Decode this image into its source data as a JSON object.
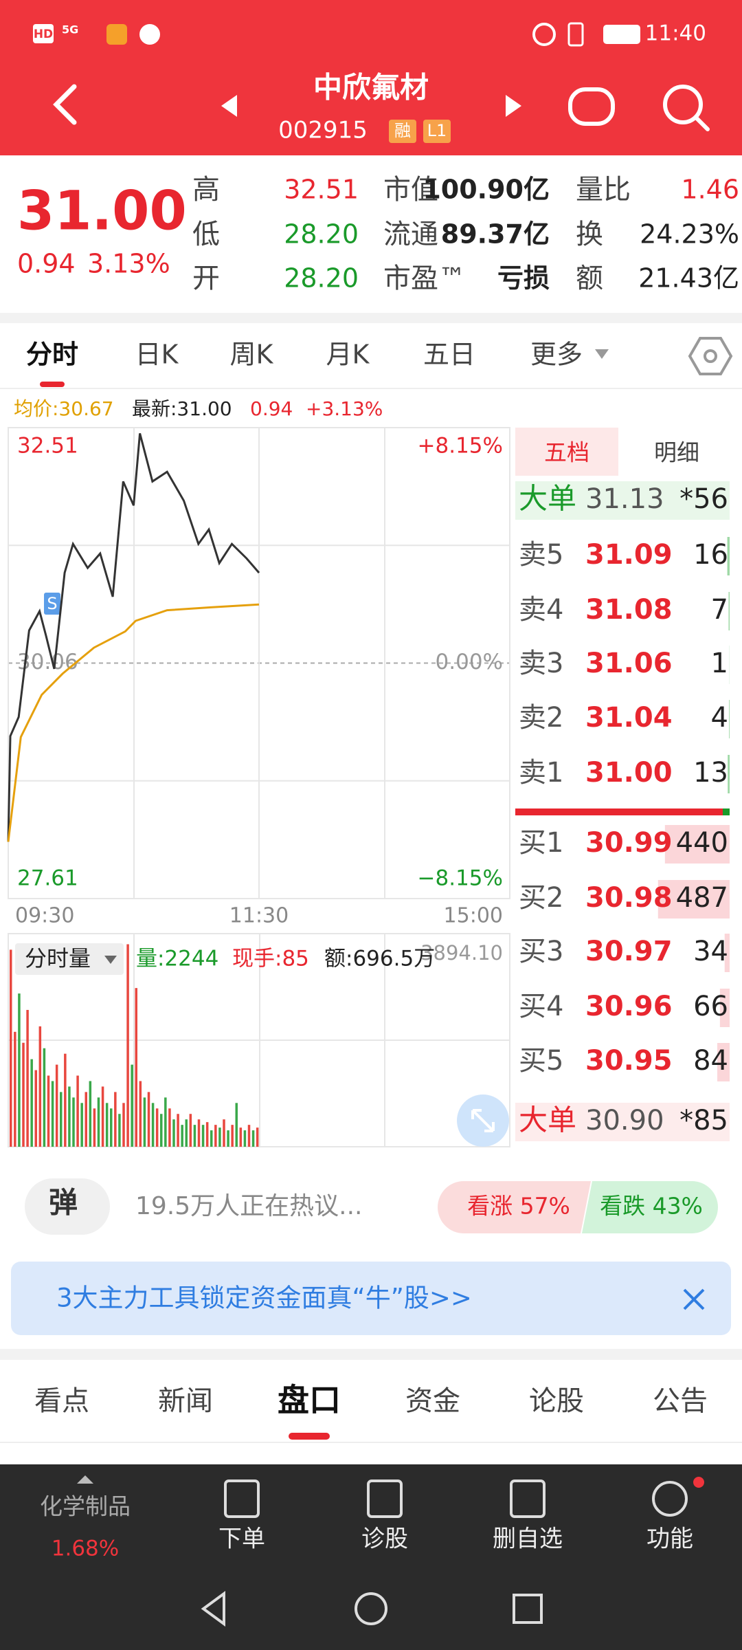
{
  "status_bar": {
    "indicators": [
      "HD",
      "5G"
    ],
    "time": "11:40"
  },
  "header": {
    "name": "中欣氟材",
    "code": "002915",
    "badges": [
      "融",
      "L1"
    ]
  },
  "quote": {
    "price": "31.00",
    "change": "0.94",
    "change_pct": "3.13%",
    "stats": [
      {
        "label": "高",
        "value": "32.51"
      },
      {
        "label": "低",
        "value": "28.20"
      },
      {
        "label": "开",
        "value": "28.20"
      },
      {
        "label": "市值",
        "value": "100.90亿"
      },
      {
        "label": "流通",
        "value": "89.37亿"
      },
      {
        "label": "市盈™",
        "value": "亏损"
      },
      {
        "label": "量比",
        "value": "1.46"
      },
      {
        "label": "换",
        "value": "24.23%"
      },
      {
        "label": "额",
        "value": "21.43亿"
      }
    ]
  },
  "chart_tabs": {
    "items": [
      "分时",
      "日K",
      "周K",
      "月K",
      "五日",
      "更多"
    ],
    "active": 0
  },
  "chart_data": [
    {
      "type": "line",
      "legend": [
        "均价:30.67",
        "最新:31.00",
        "0.94",
        "+3.13%"
      ],
      "xlim": [
        0,
        240
      ],
      "xticks": [
        {
          "value": 0,
          "label": "09:30"
        },
        {
          "value": 120,
          "label": "11:30"
        },
        {
          "value": 240,
          "label": "15:00"
        }
      ],
      "ylim": [
        27.61,
        32.51
      ],
      "yticks": [
        32.51,
        30.06,
        27.61
      ],
      "y2lim": [
        -8.15,
        8.15
      ],
      "y2ticks": [
        {
          "value": 8.15,
          "label": "+8.15%"
        },
        {
          "value": 0,
          "label": "0.00%"
        },
        {
          "value": -8.15,
          "label": "−8.15%"
        }
      ],
      "grid": true,
      "series": [
        {
          "color": "#333333",
          "x": [
            0,
            1,
            5,
            10,
            15,
            18,
            22,
            27,
            31,
            38,
            44,
            50,
            55,
            60,
            63,
            69,
            76,
            84,
            91,
            96,
            101,
            107,
            114,
            120
          ],
          "values": [
            28.2,
            29.3,
            29.5,
            30.4,
            30.6,
            30.35,
            30.0,
            31.0,
            31.3,
            31.05,
            31.2,
            30.75,
            31.95,
            31.7,
            32.45,
            31.95,
            32.05,
            31.75,
            31.3,
            31.45,
            31.1,
            31.3,
            31.15,
            31.0
          ]
        },
        {
          "color": "#e5a00d",
          "x": [
            0,
            6,
            16,
            26,
            41,
            56,
            61,
            76,
            97,
            120
          ],
          "values": [
            28.2,
            29.29,
            29.73,
            29.95,
            30.22,
            30.39,
            30.5,
            30.61,
            30.64,
            30.67
          ]
        }
      ]
    },
    {
      "type": "bar",
      "selector": "分时量",
      "volume_label": "量:2244",
      "hand_label": "现手:85",
      "amount_label": "额:696.5万",
      "xlim": [
        0,
        240
      ],
      "ylim": [
        0,
        3894.1
      ],
      "yticks": [
        {
          "value": 3894.1,
          "label": "3894.10"
        }
      ],
      "colors": {
        "up": "#e8473f",
        "down": "#3aa84a"
      },
      "x": [
        0,
        2,
        4,
        6,
        8,
        10,
        12,
        14,
        16,
        18,
        20,
        22,
        24,
        26,
        28,
        30,
        32,
        34,
        36,
        38,
        40,
        42,
        44,
        46,
        48,
        50,
        52,
        54,
        56,
        58,
        60,
        62,
        64,
        66,
        68,
        70,
        72,
        74,
        76,
        78,
        80,
        82,
        84,
        86,
        88,
        90,
        92,
        94,
        96,
        98,
        100,
        102,
        104,
        106,
        108,
        110,
        112,
        114,
        116,
        118
      ],
      "values": [
        3600,
        2100,
        2800,
        1900,
        2500,
        1600,
        1400,
        2200,
        1800,
        1300,
        1200,
        1500,
        1000,
        1700,
        1100,
        900,
        1300,
        800,
        1000,
        1200,
        700,
        900,
        1100,
        800,
        700,
        1000,
        600,
        800,
        3700,
        1500,
        2900,
        1200,
        900,
        1000,
        800,
        700,
        600,
        900,
        700,
        500,
        600,
        400,
        500,
        600,
        400,
        500,
        400,
        450,
        300,
        400,
        350,
        500,
        300,
        400,
        800,
        350,
        300,
        400,
        300,
        350
      ],
      "rising": [
        true,
        true,
        false,
        true,
        true,
        false,
        true,
        true,
        false,
        true,
        false,
        true,
        false,
        true,
        false,
        false,
        true,
        false,
        true,
        false,
        true,
        false,
        true,
        false,
        false,
        true,
        false,
        true,
        true,
        false,
        true,
        true,
        false,
        true,
        false,
        true,
        false,
        false,
        true,
        false,
        true,
        false,
        false,
        true,
        false,
        true,
        false,
        true,
        false,
        true,
        false,
        true,
        false,
        true,
        false,
        true,
        false,
        true,
        false,
        true
      ]
    }
  ],
  "order_book": {
    "tabs": [
      "五档",
      "明细"
    ],
    "big_sell": {
      "label": "大单",
      "price": "31.13",
      "volume": "*56"
    },
    "asks": [
      {
        "label": "卖5",
        "price": "31.09",
        "volume": 16
      },
      {
        "label": "卖4",
        "price": "31.08",
        "volume": 7
      },
      {
        "label": "卖3",
        "price": "31.06",
        "volume": 1
      },
      {
        "label": "卖2",
        "price": "31.04",
        "volume": 4
      },
      {
        "label": "卖1",
        "price": "31.00",
        "volume": 13
      }
    ],
    "bids": [
      {
        "label": "买1",
        "price": "30.99",
        "volume": 440
      },
      {
        "label": "买2",
        "price": "30.98",
        "volume": 487
      },
      {
        "label": "买3",
        "price": "30.97",
        "volume": 34
      },
      {
        "label": "买4",
        "price": "30.96",
        "volume": 66
      },
      {
        "label": "买5",
        "price": "30.95",
        "volume": 84
      }
    ],
    "big_buy": {
      "label": "大单",
      "price": "30.90",
      "volume": "*85"
    }
  },
  "discussion": {
    "button": "弹",
    "text": "19.5万人正在热议...",
    "bull": "看涨 57%",
    "bear": "看跌 43%"
  },
  "banner": {
    "text": "3大主力工具锁定资金面真“牛”股>>"
  },
  "detail_tabs": {
    "items": [
      "看点",
      "新闻",
      "盘口",
      "资金",
      "论股",
      "公告"
    ],
    "active": 2
  },
  "bottom_nav": {
    "sector": "化学制品",
    "sector_change": "1.68%",
    "items": [
      "下单",
      "诊股",
      "删自选",
      "功能"
    ]
  }
}
